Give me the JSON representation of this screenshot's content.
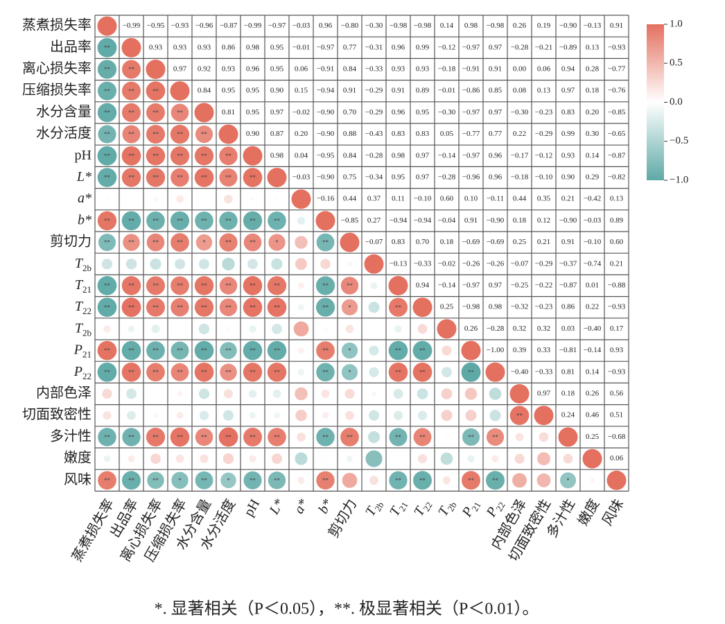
{
  "chart_data": {
    "type": "correlation-matrix",
    "labels": [
      "蒸煮损失率",
      "出品率",
      "离心损失率",
      "压缩损失率",
      "水分含量",
      "水分活度",
      "pH",
      "L*",
      "a*",
      "b*",
      "剪切力",
      {
        "base": "T",
        "sub": "2b"
      },
      {
        "base": "T",
        "sub": "21"
      },
      {
        "base": "T",
        "sub": "22"
      },
      {
        "base": "T",
        "sub": "2b"
      },
      {
        "base": "P",
        "sub": "21"
      },
      {
        "base": "P",
        "sub": "22"
      },
      "内部色泽",
      "切面致密性",
      "多汁性",
      "嫩度",
      "风味"
    ],
    "diagonal": 1,
    "values": [
      [
        -0.99,
        -0.95,
        -0.93,
        -0.96,
        -0.87,
        -0.99,
        -0.97,
        -0.03,
        0.96,
        -0.8,
        -0.3,
        -0.98,
        -0.98,
        0.14,
        0.98,
        -0.98,
        0.26,
        0.19,
        -0.9,
        -0.13,
        0.91
      ],
      [
        0.93,
        0.93,
        0.93,
        0.86,
        0.98,
        0.95,
        -0.01,
        -0.97,
        0.77,
        -0.31,
        0.96,
        0.99,
        -0.12,
        -0.97,
        0.97,
        -0.28,
        -0.21,
        -0.89,
        0.13,
        -0.93
      ],
      [
        0.97,
        0.92,
        0.93,
        0.96,
        0.95,
        0.06,
        -0.91,
        0.84,
        -0.33,
        0.93,
        0.93,
        -0.18,
        -0.91,
        0.91,
        0.0,
        0.06,
        0.94,
        0.28,
        -0.77
      ],
      [
        0.84,
        0.95,
        0.95,
        0.9,
        0.15,
        -0.94,
        0.91,
        -0.29,
        0.91,
        0.89,
        -0.01,
        -0.86,
        0.85,
        0.08,
        0.13,
        0.97,
        0.18,
        -0.76
      ],
      [
        0.81,
        0.95,
        0.97,
        -0.02,
        -0.9,
        0.7,
        -0.29,
        0.96,
        0.95,
        -0.3,
        -0.97,
        0.97,
        -0.3,
        -0.23,
        0.83,
        0.2,
        -0.85
      ],
      [
        0.9,
        0.87,
        0.2,
        -0.9,
        0.88,
        -0.43,
        0.83,
        0.83,
        0.05,
        -0.77,
        0.77,
        0.22,
        -0.29,
        0.99,
        0.3,
        -0.65
      ],
      [
        0.98,
        0.04,
        -0.95,
        0.84,
        -0.28,
        0.98,
        0.97,
        -0.14,
        -0.97,
        0.96,
        -0.17,
        -0.12,
        0.93,
        0.14,
        -0.87
      ],
      [
        -0.03,
        -0.9,
        0.75,
        -0.34,
        0.95,
        0.97,
        -0.28,
        -0.96,
        0.96,
        -0.18,
        -0.1,
        0.9,
        0.29,
        -0.82
      ],
      [
        -0.16,
        0.44,
        0.37,
        0.11,
        -0.1,
        0.6,
        0.1,
        -0.11,
        0.44,
        0.35,
        0.21,
        -0.42,
        0.13
      ],
      [
        -0.85,
        0.27,
        -0.94,
        -0.94,
        -0.04,
        0.91,
        -0.9,
        0.18,
        0.12,
        -0.9,
        -0.03,
        0.89
      ],
      [
        -0.07,
        0.83,
        0.7,
        0.18,
        -0.69,
        -0.69,
        0.25,
        0.21,
        0.91,
        -0.1,
        0.6
      ],
      [
        -0.13,
        -0.33,
        -0.02,
        -0.26,
        -0.26,
        -0.07,
        -0.29,
        -0.37,
        -0.74,
        0.21
      ],
      [
        0.94,
        -0.14,
        -0.97,
        0.97,
        -0.25,
        -0.22,
        -0.87,
        0.01,
        -0.88
      ],
      [
        0.25,
        -0.98,
        0.98,
        -0.32,
        -0.23,
        0.86,
        0.22,
        -0.93
      ],
      [
        0.26,
        -0.28,
        0.32,
        0.32,
        0.03,
        -0.4,
        0.17
      ],
      [
        -1.0,
        0.39,
        0.33,
        -0.81,
        -0.14,
        0.93
      ],
      [
        -0.4,
        -0.33,
        0.81,
        0.14,
        -0.93
      ],
      [
        0.97,
        0.18,
        0.26,
        0.56
      ],
      [
        0.24,
        0.46,
        0.51
      ],
      [
        0.25,
        -0.68
      ],
      [
        0.06
      ]
    ],
    "value_labels": [
      [
        "−0.99",
        "−0.95",
        "−0.93",
        "−0.96",
        "−0.87",
        "−0.99",
        "−0.97",
        "−0.03",
        "0.96",
        "−0.80",
        "−0.30",
        "−0.98",
        "−0.98",
        "0.14",
        "0.98",
        "−0.98",
        "0.26",
        "0.19",
        "−0.90",
        "−0.13",
        "0.91"
      ],
      [
        "0.93",
        "0.93",
        "0.93",
        "0.86",
        "0.98",
        "0.95",
        "−0.01",
        "−0.97",
        "0.77",
        "−0.31",
        "0.96",
        "0.99",
        "−0.12",
        "−0.97",
        "0.97",
        "−0.28",
        "−0.21",
        "−0.89",
        "0.13",
        "−0.93"
      ],
      [
        "0.97",
        "0.92",
        "0.93",
        "0.96",
        "0.95",
        "0.06",
        "−0.91",
        "0.84",
        "−0.33",
        "0.93",
        "0.93",
        "−0.18",
        "−0.91",
        "0.91",
        "0.00",
        "0.06",
        "0.94",
        "0.28",
        "−0.77"
      ],
      [
        "0.84",
        "0.95",
        "0.95",
        "0.90",
        "0.15",
        "−0.94",
        "0.91",
        "−0.29",
        "0.91",
        "0.89",
        "−0.01",
        "−0.86",
        "0.85",
        "0.08",
        "0.13",
        "0.97",
        "0.18",
        "−0.76"
      ],
      [
        "0.81",
        "0.95",
        "0.97",
        "−0.02",
        "−0.90",
        "0.70",
        "−0.29",
        "0.96",
        "0.95",
        "−0.30",
        "−0.97",
        "0.97",
        "−0.30",
        "−0.23",
        "0.83",
        "0.20",
        "−0.85"
      ],
      [
        "0.90",
        "0.87",
        "0.20",
        "−0.90",
        "0.88",
        "−0.43",
        "0.83",
        "0.83",
        "0.05",
        "−0.77",
        "0.77",
        "0.22",
        "−0.29",
        "0.99",
        "0.30",
        "−0.65"
      ],
      [
        "0.98",
        "0.04",
        "−0.95",
        "0.84",
        "−0.28",
        "0.98",
        "0.97",
        "−0.14",
        "−0.97",
        "0.96",
        "−0.17",
        "−0.12",
        "0.93",
        "0.14",
        "−0.87"
      ],
      [
        "−0.03",
        "−0.90",
        "0.75",
        "−0.34",
        "0.95",
        "0.97",
        "−0.28",
        "−0.96",
        "0.96",
        "−0.18",
        "−0.10",
        "0.90",
        "0.29",
        "−0.82"
      ],
      [
        "−0.16",
        "0.44",
        "0.37",
        "0.11",
        "−0.10",
        "0.60",
        "0.10",
        "−0.11",
        "0.44",
        "0.35",
        "0.21",
        "−0.42",
        "0.13"
      ],
      [
        "−0.85",
        "0.27",
        "−0.94",
        "−0.94",
        "−0.04",
        "0.91",
        "−0.90",
        "0.18",
        "0.12",
        "−0.90",
        "−0.03",
        "0.89"
      ],
      [
        "−0.07",
        "0.83",
        "0.70",
        "0.18",
        "−0.69",
        "−0.69",
        "0.25",
        "0.21",
        "0.91",
        "−0.10",
        "0.60"
      ],
      [
        "−0.13",
        "−0.33",
        "−0.02",
        "−0.26",
        "−0.26",
        "−0.07",
        "−0.29",
        "−0.37",
        "−0.74",
        "0.21"
      ],
      [
        "0.94",
        "−0.14",
        "−0.97",
        "0.97",
        "−0.25",
        "−0.22",
        "−0.87",
        "0.01",
        "−0.88"
      ],
      [
        "0.25",
        "−0.98",
        "0.98",
        "−0.32",
        "−0.23",
        "0.86",
        "0.22",
        "−0.93"
      ],
      [
        "0.26",
        "−0.28",
        "0.32",
        "0.32",
        "0.03",
        "−0.40",
        "0.17"
      ],
      [
        "−1.00",
        "0.39",
        "0.33",
        "−0.81",
        "−0.14",
        "0.93"
      ],
      [
        "−0.40",
        "−0.33",
        "0.81",
        "0.14",
        "−0.93"
      ],
      [
        "0.97",
        "0.18",
        "0.26",
        "0.56"
      ],
      [
        "0.24",
        "0.46",
        "0.51"
      ],
      [
        "0.25",
        "−0.68"
      ],
      [
        "0.06"
      ]
    ],
    "stars": [
      [
        "**",
        "**",
        "**",
        "**",
        "**",
        "**",
        "**",
        null,
        "**",
        "**",
        null,
        "**",
        "**",
        null,
        "**",
        "**",
        null,
        null,
        "**",
        null,
        "**"
      ],
      [
        "**",
        "**",
        "**",
        "**",
        "**",
        "**",
        null,
        "**",
        "**",
        null,
        "**",
        "**",
        null,
        "**",
        "**",
        null,
        null,
        "**",
        null,
        "**"
      ],
      [
        "**",
        "**",
        "**",
        "**",
        "**",
        null,
        "**",
        "**",
        null,
        "**",
        "**",
        null,
        "**",
        "**",
        null,
        null,
        "**",
        null,
        "**"
      ],
      [
        "**",
        "**",
        "**",
        "**",
        null,
        "**",
        "**",
        null,
        "**",
        "**",
        null,
        "**",
        "**",
        null,
        null,
        "**",
        null,
        "*"
      ],
      [
        "**",
        "**",
        "**",
        null,
        "**",
        "*",
        null,
        "**",
        "**",
        null,
        "**",
        "**",
        null,
        null,
        "**",
        null,
        "**"
      ],
      [
        "**",
        "**",
        null,
        "**",
        "**",
        null,
        "**",
        "**",
        null,
        "**",
        "**",
        null,
        null,
        "**",
        null,
        "*"
      ],
      [
        "**",
        null,
        "**",
        "**",
        null,
        "**",
        "**",
        null,
        "**",
        "**",
        null,
        null,
        "**",
        null,
        "**"
      ],
      [
        null,
        "**",
        "*",
        null,
        "**",
        "**",
        null,
        "**",
        "**",
        null,
        null,
        "**",
        null,
        "**"
      ],
      [
        null,
        null,
        null,
        null,
        null,
        null,
        null,
        null,
        null,
        null,
        null,
        null,
        null
      ],
      [
        "**",
        null,
        "**",
        "**",
        null,
        "**",
        "**",
        null,
        null,
        "**",
        null,
        "**"
      ],
      [
        null,
        "**",
        "*",
        null,
        "*",
        "*",
        null,
        null,
        "**",
        null,
        null
      ],
      [
        null,
        null,
        null,
        null,
        null,
        null,
        null,
        null,
        null,
        null
      ],
      [
        "**",
        null,
        "**",
        "**",
        null,
        null,
        "**",
        null,
        "**"
      ],
      [
        null,
        "**",
        "**",
        null,
        null,
        "**",
        null,
        "**"
      ],
      [
        null,
        null,
        null,
        null,
        null,
        null,
        null
      ],
      [
        "**",
        null,
        null,
        "**",
        null,
        "**"
      ],
      [
        null,
        null,
        "**",
        null,
        "**"
      ],
      [
        "**",
        null,
        null,
        null
      ],
      [
        null,
        null,
        null
      ],
      [
        null,
        "*"
      ],
      [
        null
      ]
    ],
    "clim": [
      -1,
      1
    ],
    "colorbar_ticks": [
      {
        "value": 1,
        "label": "1.0"
      },
      0.5,
      {
        "value": 0,
        "label": "0.0"
      },
      {
        "value": -0.5,
        "label": "−0.5"
      },
      {
        "value": -1,
        "label": "−1.0"
      }
    ],
    "colors": {
      "positive": "#e4705f",
      "zero": "#ffffff",
      "negative": "#5ea9a6"
    },
    "note": "*. 显著相关（P＜0.05），**. 极显著相关（P＜0.01）。"
  }
}
